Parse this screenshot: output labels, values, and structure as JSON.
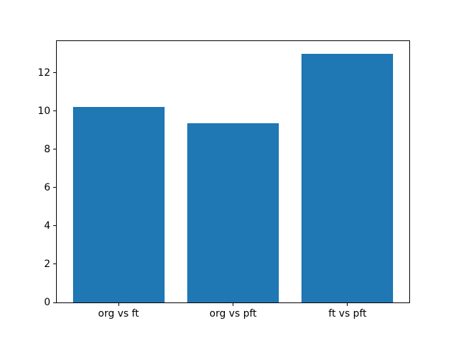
{
  "chart_data": {
    "type": "bar",
    "title": "",
    "xlabel": "",
    "ylabel": "",
    "categories": [
      "org vs ft",
      "org vs pft",
      "ft vs pft"
    ],
    "values": [
      10.2,
      9.35,
      13.0
    ],
    "yticks": [
      0,
      2,
      4,
      6,
      8,
      10,
      12
    ],
    "ylim": [
      0,
      13.65
    ],
    "grid": false,
    "legend_position": "none",
    "bar_color": "#1f77b4",
    "axis_color": "#000000",
    "text_color": "#000000",
    "background_color": "#ffffff"
  }
}
